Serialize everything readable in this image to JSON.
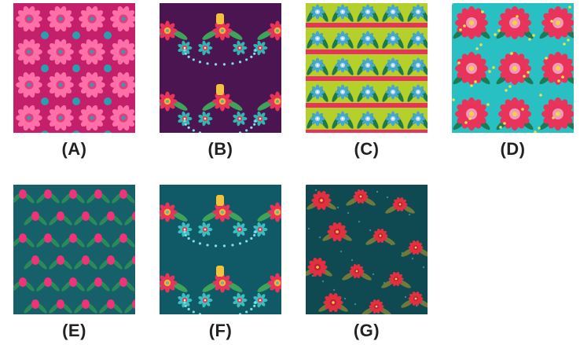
{
  "patterns": [
    {
      "label": "(A)",
      "bg": "#c41f6a",
      "accent": "#ff6fa8",
      "accent2": "#2a9fb0",
      "leaf": "#e0407f",
      "motif": "medallion-icon"
    },
    {
      "label": "(B)",
      "bg": "#4a1550",
      "accent": "#e8345a",
      "accent2": "#2fb7b0",
      "leaf": "#3fa35a",
      "motif": "folk-bouquet-icon"
    },
    {
      "label": "(C)",
      "bg": "#b5cf2b",
      "accent": "#e8345a",
      "accent2": "#46a7c9",
      "leaf": "#1f7a4a",
      "motif": "tulip-border-icon"
    },
    {
      "label": "(D)",
      "bg": "#29c0c4",
      "accent": "#e8345a",
      "accent2": "#f29ab8",
      "leaf": "#1c7a55",
      "motif": "rose-icon"
    },
    {
      "label": "(E)",
      "bg": "#16606a",
      "accent": "#f0327a",
      "accent2": "#e8a030",
      "leaf": "#2c8a5a",
      "motif": "scattered-bud-icon"
    },
    {
      "label": "(F)",
      "bg": "#0f5a66",
      "accent": "#e8345a",
      "accent2": "#39c0c0",
      "leaf": "#3fa35a",
      "motif": "folk-bouquet-icon"
    },
    {
      "label": "(G)",
      "bg": "#0f4a52",
      "accent": "#e23040",
      "accent2": "#a86a3a",
      "leaf": "#6f7a3a",
      "motif": "peony-icon"
    }
  ]
}
